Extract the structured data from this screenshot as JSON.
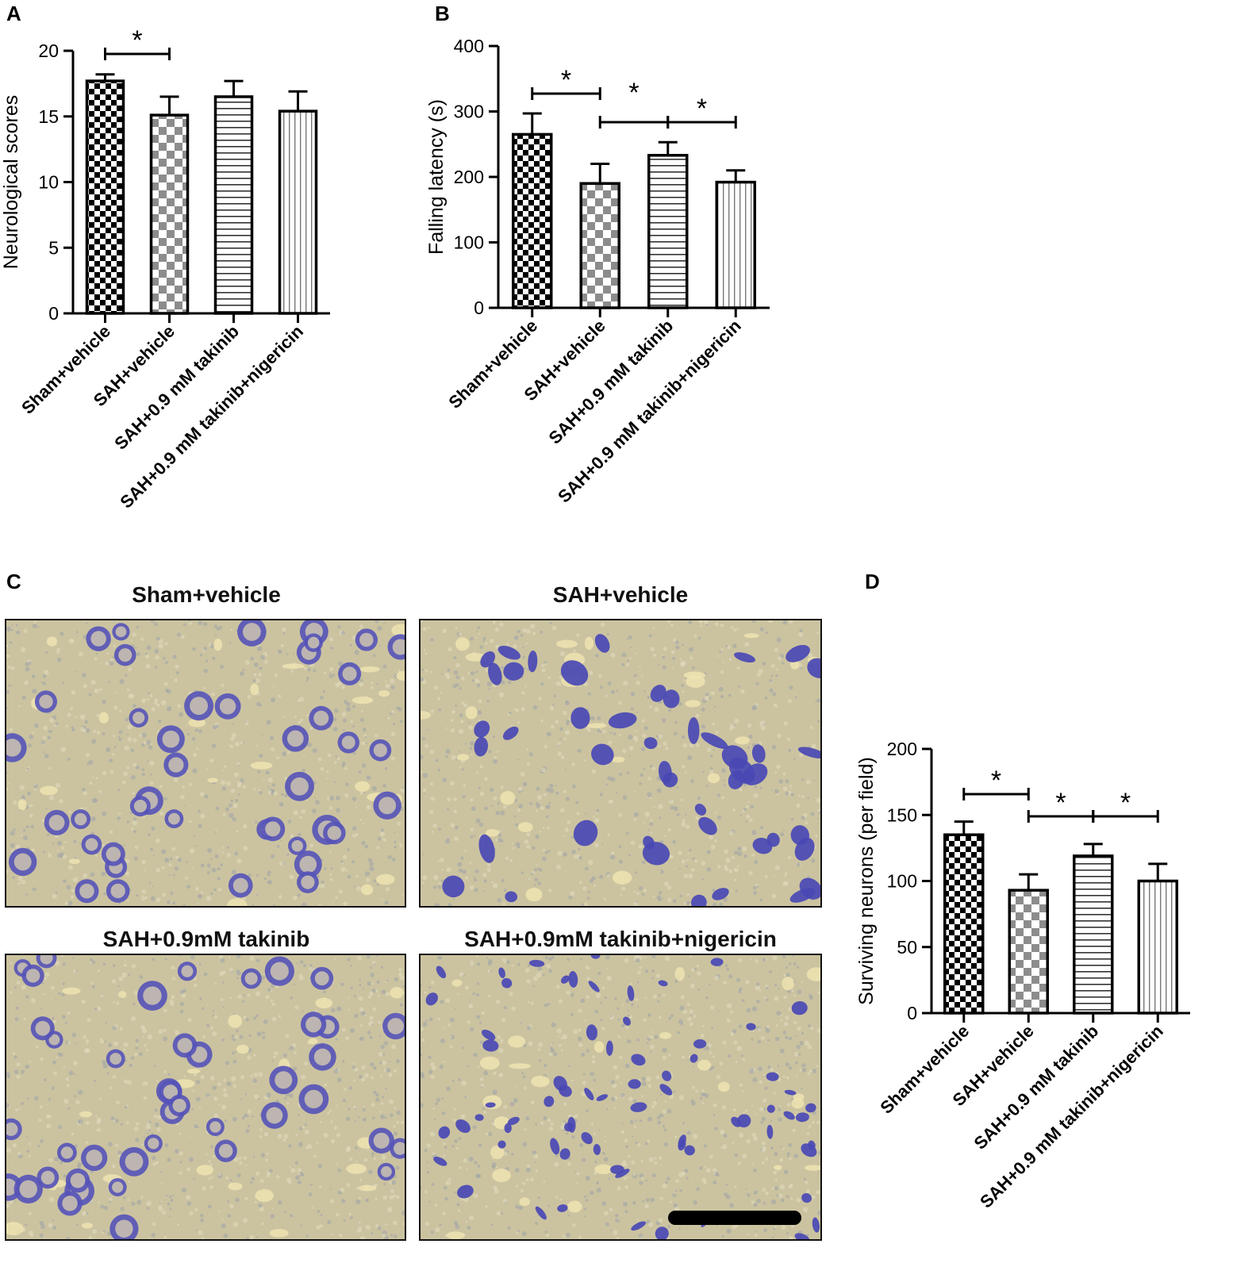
{
  "panels": {
    "A": {
      "letter": "A"
    },
    "B": {
      "letter": "B"
    },
    "C": {
      "letter": "C",
      "images": [
        {
          "title": "Sham+vehicle"
        },
        {
          "title": "SAH+vehicle"
        },
        {
          "title": "SAH+0.9mM takinib"
        },
        {
          "title": "SAH+0.9mM takinib+nigericin"
        }
      ]
    },
    "D": {
      "letter": "D"
    }
  },
  "colors": {
    "stain_background": "#cbc3a0",
    "stain_cells": "#4a49b4",
    "bar_outline": "#000000",
    "pattern_dark": "#000000",
    "pattern_grey": "#8c8c8c"
  },
  "chart_data": [
    {
      "panel": "A",
      "type": "bar",
      "categories": [
        "Sham+vehicle",
        "SAH+vehicle",
        "SAH+0.9 mM takinib",
        "SAH+0.9 mM takinib+nigericin"
      ],
      "values": [
        17.7,
        15.1,
        16.5,
        15.4
      ],
      "errors": [
        0.5,
        1.4,
        1.2,
        1.5
      ],
      "patterns": [
        "checker-black",
        "checker-grey",
        "horizontal-stripes",
        "vertical-stripes"
      ],
      "ylabel": "Neurological scores",
      "ylim": [
        0,
        20
      ],
      "yticks": [
        0,
        5,
        10,
        15,
        20
      ],
      "significance": [
        {
          "from": 0,
          "to": 1,
          "label": "*"
        }
      ]
    },
    {
      "panel": "B",
      "type": "bar",
      "categories": [
        "Sham+vehicle",
        "SAH+vehicle",
        "SAH+0.9 mM takinib",
        "SAH+0.9 mM takinib+nigericin"
      ],
      "values": [
        265,
        190,
        233,
        192
      ],
      "errors": [
        32,
        30,
        20,
        18
      ],
      "patterns": [
        "checker-black",
        "checker-grey",
        "horizontal-stripes",
        "vertical-stripes"
      ],
      "ylabel": "Falling latency (s)",
      "ylim": [
        0,
        400
      ],
      "yticks": [
        0,
        100,
        200,
        300,
        400
      ],
      "significance": [
        {
          "from": 0,
          "to": 1,
          "label": "*",
          "level": 0
        },
        {
          "from": 1,
          "to": 2,
          "label": "*",
          "level": 1
        },
        {
          "from": 2,
          "to": 3,
          "label": "*",
          "level": 1
        }
      ]
    },
    {
      "panel": "D",
      "type": "bar",
      "categories": [
        "Sham+vehicle",
        "SAH+vehicle",
        "SAH+0.9 mM takinib",
        "SAH+0.9 mM takinib+nigericin"
      ],
      "values": [
        135,
        93,
        119,
        100
      ],
      "errors": [
        10,
        12,
        9,
        13
      ],
      "patterns": [
        "checker-black",
        "checker-grey",
        "horizontal-stripes",
        "vertical-stripes"
      ],
      "ylabel": "Surviving neurons (per field)",
      "ylim": [
        0,
        200
      ],
      "yticks": [
        0,
        50,
        100,
        150,
        200
      ],
      "significance": [
        {
          "from": 0,
          "to": 1,
          "label": "*",
          "level": 0
        },
        {
          "from": 1,
          "to": 2,
          "label": "*",
          "level": 1
        },
        {
          "from": 2,
          "to": 3,
          "label": "*",
          "level": 1
        }
      ]
    }
  ]
}
